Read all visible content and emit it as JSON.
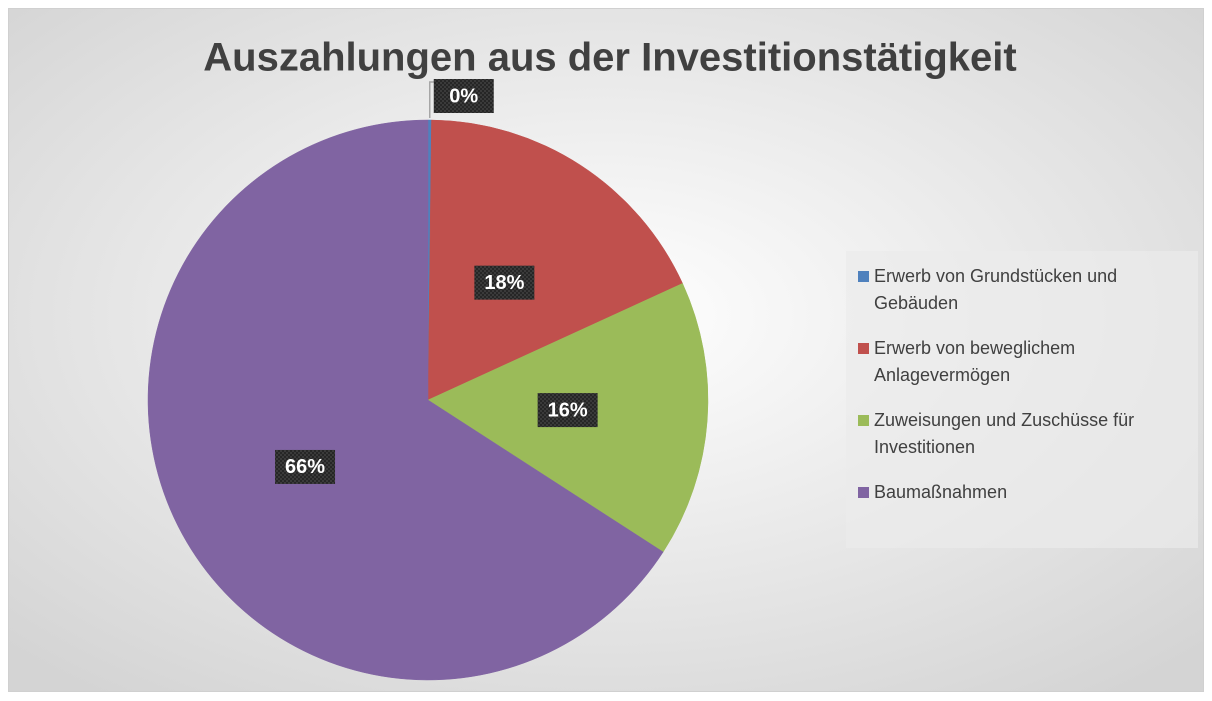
{
  "chart_data": {
    "type": "pie",
    "title": "Auszahlungen aus der Investitionstätigkeit",
    "categories": [
      "Erwerb von Grundstücken und Gebäuden",
      "Erwerb von beweglichem Anlagevermögen",
      "Zuweisungen und Zuschüsse für Investitionen",
      "Baumaßnahmen"
    ],
    "values": [
      0.2,
      18,
      16,
      66
    ],
    "value_labels": [
      "0%",
      "18%",
      "16%",
      "66%"
    ],
    "colors": [
      "#4f81bd",
      "#c0504d",
      "#9bbb59",
      "#8064a2"
    ],
    "legend": "right"
  }
}
